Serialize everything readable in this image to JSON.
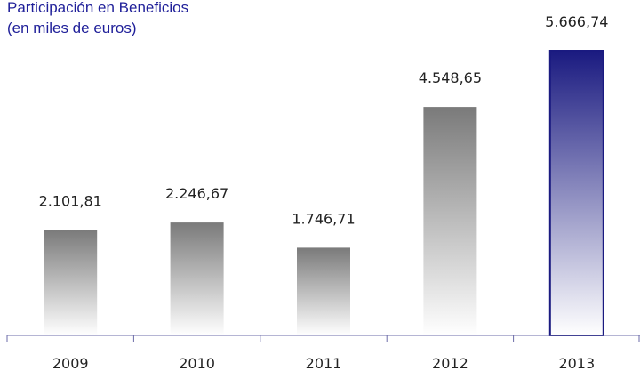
{
  "chart_data": {
    "type": "bar",
    "title": "Participación en Beneficios",
    "subtitle": "(en miles de euros)",
    "categories": [
      "2009",
      "2010",
      "2011",
      "2012",
      "2013"
    ],
    "values": [
      2101.81,
      2246.67,
      1746.71,
      4548.65,
      5666.74
    ],
    "data_labels": [
      "2.101,81",
      "2.246,67",
      "1.746,71",
      "4.548,65",
      "5.666,74"
    ],
    "ylim": [
      0,
      5666.74
    ],
    "grid": false,
    "legend": "none",
    "highlight_category": "2013"
  },
  "colors": {
    "title": "#1f1f99",
    "bar_gradient_top": "#7a7a7a",
    "bar_gradient_bottom": "#ffffff",
    "highlight_gradient_top": "#1a1a80",
    "highlight_gradient_bottom": "#ffffff",
    "highlight_border": "#1a1a80",
    "axis": "#6b6ba8"
  }
}
